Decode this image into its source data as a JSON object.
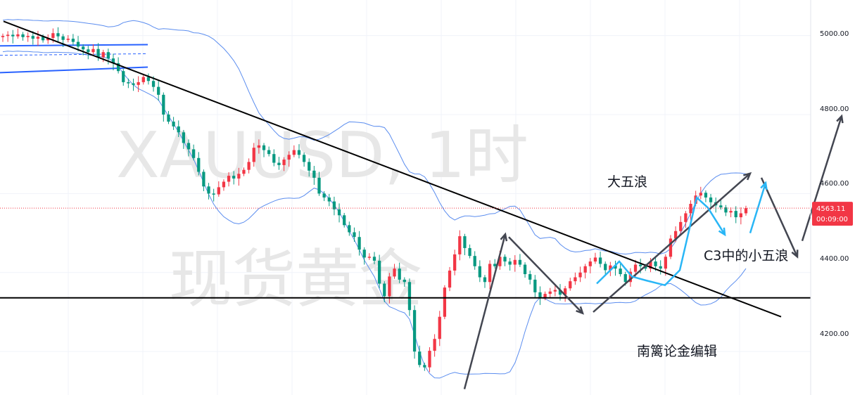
{
  "chart_data": {
    "type": "candlestick",
    "watermark": {
      "line1": "XAUUSD, 1时",
      "line2": "现货黄金"
    },
    "y_ticks": [
      "5000.00",
      "4800.00",
      "4600.00",
      "4400.00",
      "4200.00"
    ],
    "y_tick_values": [
      5000,
      4800,
      4600,
      4400,
      4200
    ],
    "ylim": [
      4090,
      5090
    ],
    "last_price": {
      "value": "4563.11",
      "countdown": "00:09:00"
    },
    "annotations": {
      "big_wave": "大五浪",
      "small_wave": "C3中的小五浪",
      "author": "南篱论金编辑"
    },
    "colors": {
      "up": "#f23645",
      "down": "#089981",
      "bollinger": "#5b8def",
      "channel": "#2962ff",
      "trendline": "#000000",
      "arrow_dark": "#434651",
      "arrow_blue": "#29b6f6",
      "price_tag": "#f23645"
    },
    "horizontal_support": 4336,
    "downtrend_line": {
      "from": 5036,
      "to": 4288
    },
    "closes": [
      4999,
      5002,
      4998,
      5003,
      4996,
      4999,
      4992,
      4997,
      4988,
      4994,
      5006,
      4998,
      4989,
      4992,
      4984,
      4972,
      4965,
      4958,
      4966,
      4945,
      4958,
      4942,
      4930,
      4910,
      4882,
      4879,
      4875,
      4882,
      4895,
      4885,
      4870,
      4850,
      4800,
      4782,
      4770,
      4755,
      4728,
      4712,
      4690,
      4655,
      4618,
      4600,
      4598,
      4616,
      4630,
      4645,
      4638,
      4650,
      4660,
      4680,
      4716,
      4722,
      4710,
      4700,
      4678,
      4672,
      4686,
      4698,
      4710,
      4698,
      4680,
      4658,
      4640,
      4600,
      4590,
      4580,
      4560,
      4545,
      4520,
      4502,
      4490,
      4458,
      4438,
      4440,
      4430,
      4372,
      4340,
      4390,
      4410,
      4382,
      4376,
      4305,
      4200,
      4166,
      4160,
      4202,
      4232,
      4288,
      4362,
      4405,
      4446,
      4492,
      4462,
      4442,
      4416,
      4388,
      4376,
      4422,
      4416,
      4440,
      4428,
      4420,
      4432,
      4420,
      4396,
      4382,
      4350,
      4336,
      4346,
      4352,
      4356,
      4344,
      4360,
      4378,
      4388,
      4400,
      4416,
      4428,
      4438,
      4422,
      4406,
      4418,
      4410,
      4396,
      4376,
      4402,
      4420,
      4416,
      4410,
      4428,
      4416,
      4410,
      4440,
      4486,
      4505,
      4528,
      4550,
      4574,
      4595,
      4602,
      4590,
      4578,
      4570,
      4565,
      4552,
      4556,
      4540,
      4550,
      4563
    ]
  }
}
